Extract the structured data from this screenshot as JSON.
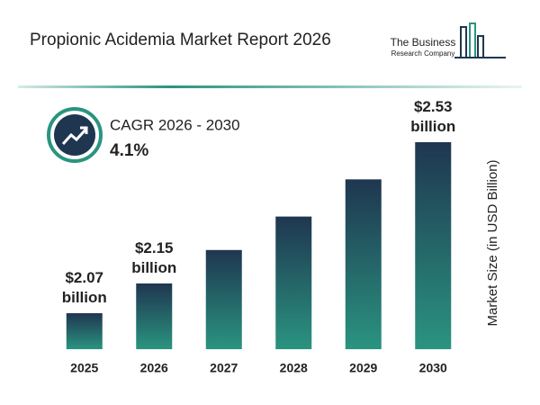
{
  "chart_data": {
    "type": "bar",
    "title": "Propionic Acidemia Market Report 2026",
    "logo": {
      "line1": "The Business",
      "line2": "Research Company"
    },
    "cagr_label": "CAGR 2026 - 2030",
    "cagr_value": "4.1%",
    "y_axis_label": "Market Size (in USD Billion)",
    "categories": [
      "2025",
      "2026",
      "2027",
      "2028",
      "2029",
      "2030"
    ],
    "values": [
      2.07,
      2.15,
      2.24,
      2.33,
      2.43,
      2.53
    ],
    "value_labels": [
      "$2.07 billion",
      "$2.15 billion",
      null,
      null,
      null,
      "$2.53 billion"
    ],
    "color": [
      "#1f3650",
      "#2a9480"
    ]
  }
}
